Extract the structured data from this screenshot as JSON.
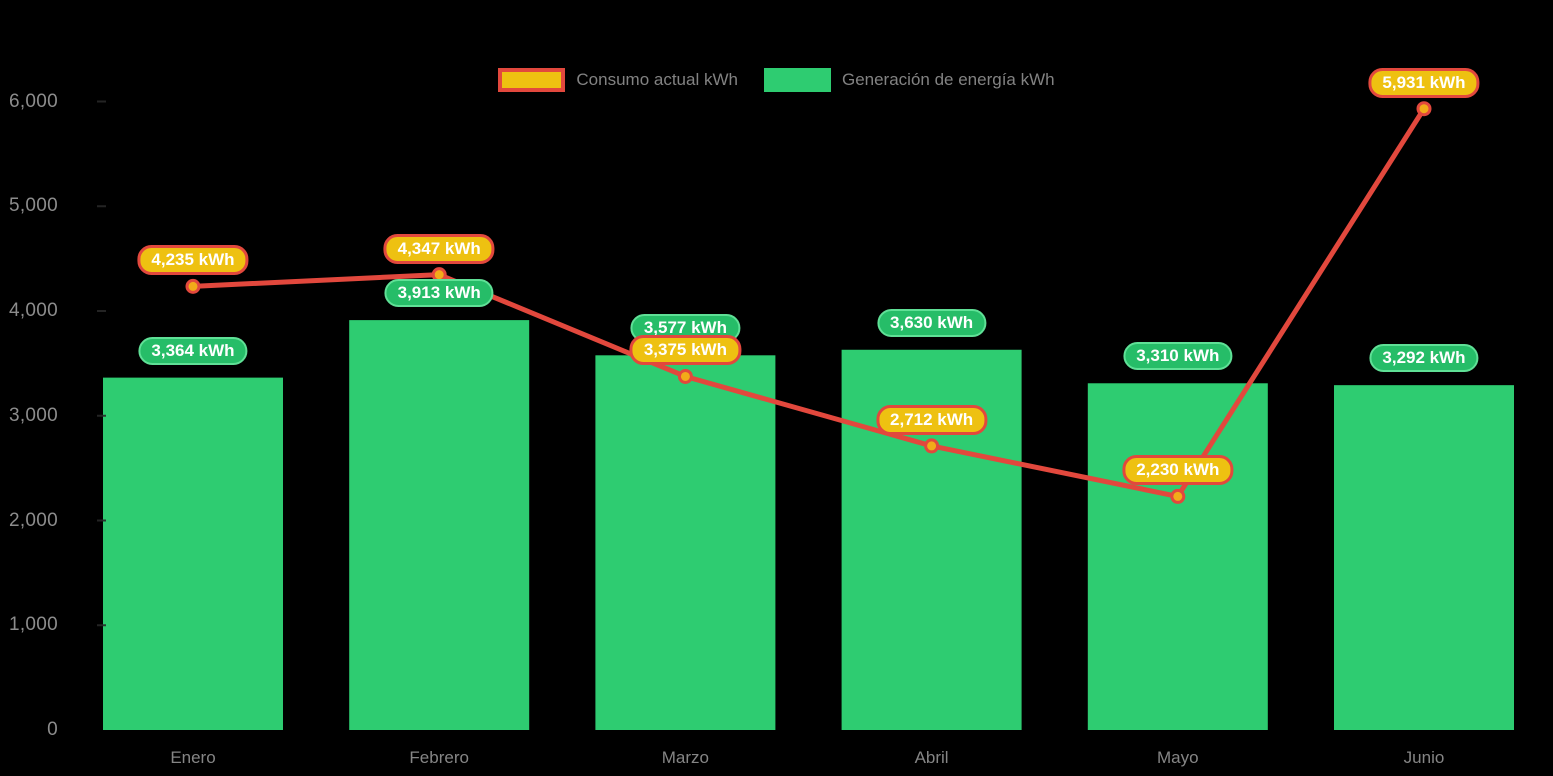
{
  "background_color": "#000000",
  "colors": {
    "bar_green": "#2ecc71",
    "line_red": "#e2483d",
    "marker_gold": "#f2ab19",
    "pill_green_fill": "#26bd68",
    "pill_green_border": "#5fe096",
    "pill_gold_fill": "#eec111",
    "pill_gold_border": "#e2483d",
    "axis_text": "#8c8c8c"
  },
  "legend": {
    "consumo_label": "Consumo actual kWh",
    "generacion_label": "Generación de energía kWh"
  },
  "chart_data": {
    "type": "combo-bar-line",
    "title": "",
    "xlabel": "",
    "ylabel": "",
    "grid": false,
    "legend_position": "top-center",
    "categories": [
      "Enero",
      "Febrero",
      "Marzo",
      "Abril",
      "Mayo",
      "Junio"
    ],
    "y_axis": {
      "range": [
        0,
        6000
      ],
      "tick_values": [
        0,
        1000,
        2000,
        3000,
        4000,
        5000,
        6000
      ],
      "tick_labels": [
        "0",
        "1,000",
        "2,000",
        "3,000",
        "4,000",
        "5,000",
        "6,000"
      ]
    },
    "series": [
      {
        "name": "Consumo actual kWh",
        "type": "line",
        "color": "#e2483d",
        "marker_fill": "#f2ab19",
        "values": [
          4235,
          4347,
          3375,
          2712,
          2230,
          5931
        ],
        "point_labels": [
          "4,235 kWh",
          "4,347 kWh",
          "3,375 kWh",
          "2,712 kWh",
          "2,230 kWh",
          "5,931 kWh"
        ]
      },
      {
        "name": "Generación de energía kWh",
        "type": "bar",
        "color": "#2ecc71",
        "values": [
          3364,
          3913,
          3577,
          3630,
          3310,
          3292
        ],
        "point_labels": [
          "3,364 kWh",
          "3,913 kWh",
          "3,577 kWh",
          "3,630 kWh",
          "3,310 kWh",
          "3,292 kWh"
        ]
      }
    ]
  }
}
